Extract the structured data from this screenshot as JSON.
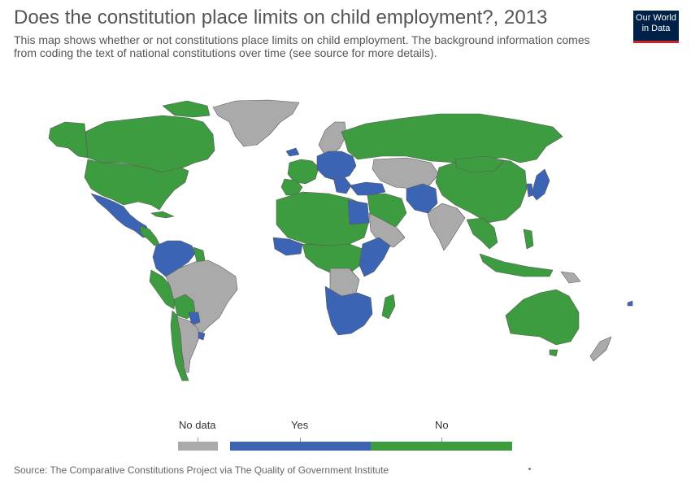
{
  "header": {
    "title": "Does the constitution place limits on child employment?, 2013",
    "subtitle": "This map shows whether or not constitutions place limits on child employment. The background information comes from coding the text of national constitutions over time (see source for more details).",
    "logo_line1": "Our World",
    "logo_line2": "in Data"
  },
  "legend": {
    "items": [
      {
        "label": "No data",
        "color": "#aaaaaa"
      },
      {
        "label": "Yes",
        "color": "#3c64b4"
      },
      {
        "label": "No",
        "color": "#3d9b40"
      }
    ]
  },
  "footer": {
    "source": "Source: The Comparative Constitutions Project via The Quality of Government Institute"
  },
  "colors": {
    "no_data": "#aaaaaa",
    "yes": "#3c64b4",
    "no": "#3d9b40",
    "border": "#5a5a5a"
  }
}
